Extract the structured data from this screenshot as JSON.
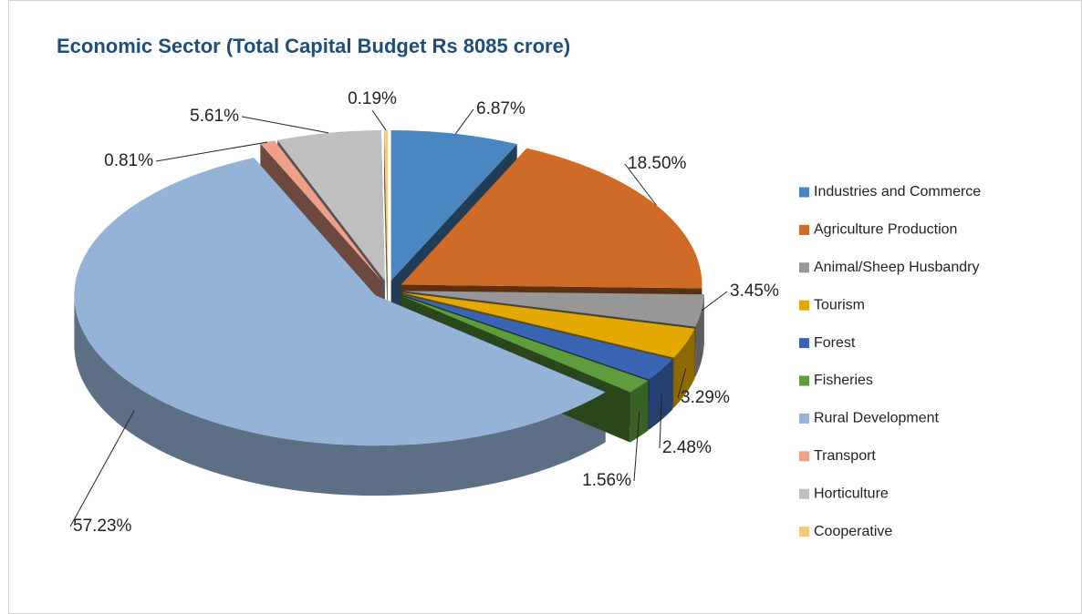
{
  "chart_data": {
    "type": "pie",
    "title": "Economic Sector (Total Capital Budget Rs 8085 crore)",
    "categories": [
      "Industries and Commerce",
      "Agriculture Production",
      "Animal/Sheep Husbandry",
      "Tourism",
      "Forest",
      "Fisheries",
      "Rural Development",
      "Transport",
      "Horticulture",
      "Cooperative"
    ],
    "values": [
      6.87,
      18.5,
      3.45,
      3.29,
      2.48,
      1.56,
      57.23,
      0.81,
      5.61,
      0.19
    ],
    "value_labels": [
      "6.87%",
      "18.50%",
      "3.45%",
      "3.29%",
      "2.48%",
      "1.56%",
      "57.23%",
      "0.81%",
      "5.61%",
      "0.19%"
    ],
    "colors": [
      "#4a86c0",
      "#d06a27",
      "#979797",
      "#e3a900",
      "#3a65b4",
      "#5e9c3c",
      "#95b3d7",
      "#f0a08a",
      "#bfbfbf",
      "#f9c97a"
    ],
    "legend": "right"
  }
}
